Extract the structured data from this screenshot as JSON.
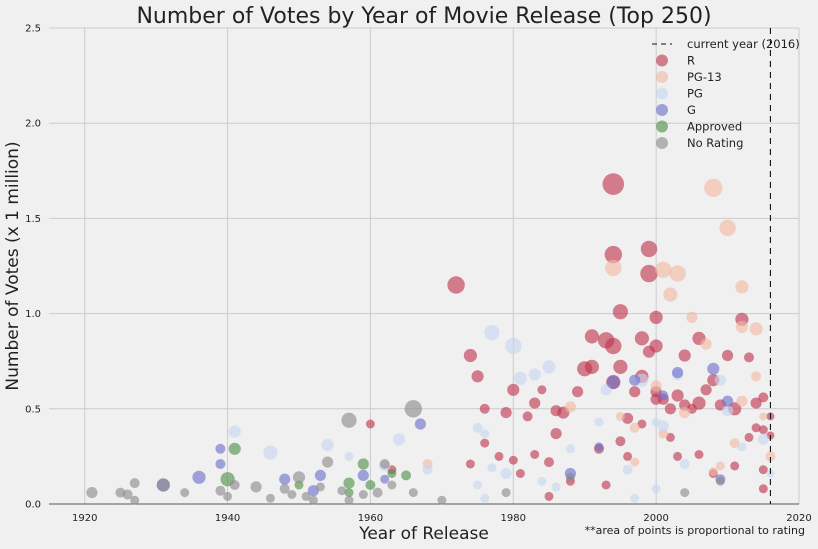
{
  "chart_data": {
    "type": "scatter",
    "title": "Number of Votes by Year of Movie Release (Top 250)",
    "xlabel": "Year of Release",
    "ylabel": "Number of Votes (x 1 million)",
    "note": "**area of points is proportional to rating",
    "xlim": [
      1915,
      2020
    ],
    "ylim": [
      0,
      2.5
    ],
    "xticks": [
      1920,
      1940,
      1960,
      1980,
      2000,
      2020
    ],
    "yticks": [
      0.0,
      0.5,
      1.0,
      1.5,
      2.0,
      2.5
    ],
    "ytick_labels": [
      "0.0",
      "0.5",
      "1.0",
      "1.5",
      "2.0",
      "2.5"
    ],
    "grid": true,
    "legend_placement": "top-right",
    "reference_line": {
      "x": 2016,
      "label": "current year (2016)"
    },
    "series": [
      {
        "name": "R",
        "color": "#c0334d",
        "points": [
          [
            1972,
            1.15,
            8.9
          ],
          [
            1974,
            0.78,
            8.5
          ],
          [
            1975,
            0.67,
            8.4
          ],
          [
            1976,
            0.5,
            8.2
          ],
          [
            1976,
            0.32,
            8.1
          ],
          [
            1974,
            0.21,
            8.1
          ],
          [
            1978,
            0.25,
            8.1
          ],
          [
            1979,
            0.48,
            8.3
          ],
          [
            1980,
            0.23,
            8.1
          ],
          [
            1980,
            0.6,
            8.4
          ],
          [
            1981,
            0.16,
            8.1
          ],
          [
            1982,
            0.46,
            8.2
          ],
          [
            1983,
            0.26,
            8.1
          ],
          [
            1983,
            0.53,
            8.3
          ],
          [
            1984,
            0.6,
            8.1
          ],
          [
            1985,
            0.22,
            8.2
          ],
          [
            1986,
            0.37,
            8.3
          ],
          [
            1986,
            0.49,
            8.3
          ],
          [
            1987,
            0.48,
            8.4
          ],
          [
            1988,
            0.12,
            8.1
          ],
          [
            1989,
            0.59,
            8.3
          ],
          [
            1990,
            0.71,
            8.7
          ],
          [
            1991,
            0.88,
            8.6
          ],
          [
            1991,
            0.72,
            8.6
          ],
          [
            1992,
            0.29,
            8.2
          ],
          [
            1993,
            0.86,
            8.8
          ],
          [
            1993,
            0.1,
            8.1
          ],
          [
            1994,
            1.68,
            9.3
          ],
          [
            1994,
            1.31,
            8.9
          ],
          [
            1994,
            0.83,
            8.8
          ],
          [
            1994,
            0.64,
            8.6
          ],
          [
            1995,
            1.01,
            8.7
          ],
          [
            1995,
            0.72,
            8.6
          ],
          [
            1995,
            0.33,
            8.2
          ],
          [
            1996,
            0.45,
            8.3
          ],
          [
            1996,
            0.25,
            8.1
          ],
          [
            1997,
            0.59,
            8.3
          ],
          [
            1998,
            0.87,
            8.6
          ],
          [
            1998,
            0.67,
            8.5
          ],
          [
            1998,
            0.42,
            8.1
          ],
          [
            1999,
            1.34,
            8.8
          ],
          [
            1999,
            1.21,
            8.9
          ],
          [
            1999,
            0.8,
            8.4
          ],
          [
            2000,
            0.98,
            8.5
          ],
          [
            2000,
            0.83,
            8.5
          ],
          [
            2000,
            0.59,
            8.3
          ],
          [
            2000,
            0.55,
            8.3
          ],
          [
            2001,
            0.55,
            8.3
          ],
          [
            2002,
            0.5,
            8.3
          ],
          [
            2002,
            0.35,
            8.1
          ],
          [
            2003,
            0.57,
            8.4
          ],
          [
            2003,
            0.25,
            8.1
          ],
          [
            2004,
            0.78,
            8.4
          ],
          [
            2004,
            0.52,
            8.3
          ],
          [
            2005,
            0.5,
            8.2
          ],
          [
            2006,
            0.87,
            8.5
          ],
          [
            2006,
            0.53,
            8.5
          ],
          [
            2006,
            0.26,
            8.1
          ],
          [
            2007,
            0.6,
            8.3
          ],
          [
            2008,
            0.16,
            8.1
          ],
          [
            2008,
            0.65,
            8.4
          ],
          [
            2009,
            0.52,
            8.3
          ],
          [
            2010,
            0.78,
            8.3
          ],
          [
            2011,
            0.5,
            8.5
          ],
          [
            2011,
            0.2,
            8.1
          ],
          [
            2012,
            0.97,
            8.5
          ],
          [
            2013,
            0.77,
            8.2
          ],
          [
            2013,
            0.35,
            8.1
          ],
          [
            2014,
            0.53,
            8.3
          ],
          [
            2014,
            0.4,
            8.1
          ],
          [
            2015,
            0.56,
            8.2
          ],
          [
            2015,
            0.39,
            8.1
          ],
          [
            2015,
            0.18,
            8.1
          ],
          [
            2016,
            0.36,
            8.0
          ],
          [
            2016,
            0.46,
            8.0
          ],
          [
            2015,
            0.08,
            8.1
          ],
          [
            1960,
            0.42,
            8.1
          ],
          [
            1963,
            0.18,
            8.1
          ],
          [
            1985,
            0.04,
            8.1
          ]
        ]
      },
      {
        "name": "PG-13",
        "color": "#f2b9a2",
        "points": [
          [
            1968,
            0.21,
            8.2
          ],
          [
            1988,
            0.51,
            8.3
          ],
          [
            1994,
            1.24,
            8.8
          ],
          [
            1997,
            0.22,
            8.1
          ],
          [
            2001,
            1.23,
            8.8
          ],
          [
            2002,
            1.1,
            8.6
          ],
          [
            2003,
            1.21,
            8.8
          ],
          [
            2004,
            0.48,
            8.3
          ],
          [
            2005,
            0.98,
            8.3
          ],
          [
            2007,
            0.84,
            8.3
          ],
          [
            2008,
            1.66,
            9.0
          ],
          [
            2008,
            0.17,
            8.1
          ],
          [
            2009,
            0.2,
            8.1
          ],
          [
            2010,
            1.45,
            8.8
          ],
          [
            2011,
            0.32,
            8.2
          ],
          [
            2012,
            1.14,
            8.5
          ],
          [
            2012,
            0.93,
            8.4
          ],
          [
            2012,
            0.54,
            8.3
          ],
          [
            2014,
            0.92,
            8.5
          ],
          [
            2014,
            0.67,
            8.2
          ],
          [
            2015,
            0.46,
            8.0
          ],
          [
            2016,
            0.25,
            8.2
          ],
          [
            2000,
            0.62,
            8.3
          ],
          [
            1995,
            0.46,
            8.1
          ],
          [
            1997,
            0.4,
            8.2
          ],
          [
            2001,
            0.37,
            8.2
          ]
        ]
      },
      {
        "name": "PG",
        "color": "#c6d7f0",
        "points": [
          [
            1941,
            0.38,
            8.4
          ],
          [
            1946,
            0.27,
            8.6
          ],
          [
            1954,
            0.31,
            8.4
          ],
          [
            1957,
            0.25,
            8.1
          ],
          [
            1962,
            0.2,
            8.3
          ],
          [
            1964,
            0.34,
            8.4
          ],
          [
            1968,
            0.18,
            8.2
          ],
          [
            1975,
            0.4,
            8.2
          ],
          [
            1976,
            0.37,
            8.1
          ],
          [
            1977,
            0.9,
            8.7
          ],
          [
            1980,
            0.83,
            8.8
          ],
          [
            1981,
            0.66,
            8.5
          ],
          [
            1983,
            0.68,
            8.4
          ],
          [
            1985,
            0.72,
            8.5
          ],
          [
            1975,
            0.1,
            8.1
          ],
          [
            1976,
            0.03,
            8.1
          ],
          [
            1977,
            0.19,
            8.1
          ],
          [
            1979,
            0.16,
            8.3
          ],
          [
            1984,
            0.12,
            8.1
          ],
          [
            1986,
            0.09,
            8.1
          ],
          [
            1988,
            0.29,
            8.1
          ],
          [
            1992,
            0.43,
            8.1
          ],
          [
            1993,
            0.6,
            8.3
          ],
          [
            1996,
            0.18,
            8.2
          ],
          [
            1997,
            0.03,
            8.1
          ],
          [
            1998,
            0.65,
            8.5
          ],
          [
            2000,
            0.43,
            8.1
          ],
          [
            2001,
            0.41,
            8.3
          ],
          [
            2003,
            0.68,
            8.3
          ],
          [
            2004,
            0.21,
            8.2
          ],
          [
            2009,
            0.65,
            8.3
          ],
          [
            2010,
            0.49,
            8.3
          ],
          [
            2012,
            0.3,
            8.1
          ],
          [
            2015,
            0.34,
            8.3
          ],
          [
            2016,
            0.16,
            8.0
          ],
          [
            2000,
            0.08,
            8.1
          ]
        ]
      },
      {
        "name": "G",
        "color": "#6c6fcb",
        "points": [
          [
            1931,
            0.1,
            8.5
          ],
          [
            1936,
            0.14,
            8.5
          ],
          [
            1939,
            0.29,
            8.2
          ],
          [
            1939,
            0.21,
            8.2
          ],
          [
            1948,
            0.13,
            8.3
          ],
          [
            1952,
            0.07,
            8.3
          ],
          [
            1953,
            0.15,
            8.3
          ],
          [
            1959,
            0.15,
            8.3
          ],
          [
            1962,
            0.13,
            8.1
          ],
          [
            1967,
            0.42,
            8.3
          ],
          [
            1988,
            0.16,
            8.3
          ],
          [
            1992,
            0.3,
            8.1
          ],
          [
            1994,
            0.64,
            8.5
          ],
          [
            1997,
            0.65,
            8.3
          ],
          [
            2001,
            0.57,
            8.2
          ],
          [
            2003,
            0.69,
            8.3
          ],
          [
            2008,
            0.71,
            8.4
          ],
          [
            2009,
            0.13,
            8.2
          ],
          [
            2010,
            0.54,
            8.3
          ]
        ]
      },
      {
        "name": "Approved",
        "color": "#4e9147",
        "points": [
          [
            1940,
            0.13,
            8.6
          ],
          [
            1941,
            0.29,
            8.4
          ],
          [
            1950,
            0.1,
            8.1
          ],
          [
            1957,
            0.11,
            8.3
          ],
          [
            1959,
            0.21,
            8.3
          ],
          [
            1960,
            0.1,
            8.2
          ],
          [
            1963,
            0.16,
            8.1
          ],
          [
            1965,
            0.15,
            8.2
          ],
          [
            1957,
            0.06,
            8.1
          ]
        ]
      },
      {
        "name": "No Rating",
        "color": "#8a8a8a",
        "points": [
          [
            1921,
            0.06,
            8.3
          ],
          [
            1925,
            0.06,
            8.2
          ],
          [
            1926,
            0.05,
            8.2
          ],
          [
            1927,
            0.11,
            8.2
          ],
          [
            1927,
            0.02,
            8.1
          ],
          [
            1931,
            0.1,
            8.5
          ],
          [
            1934,
            0.06,
            8.1
          ],
          [
            1939,
            0.07,
            8.2
          ],
          [
            1940,
            0.04,
            8.1
          ],
          [
            1941,
            0.1,
            8.2
          ],
          [
            1944,
            0.09,
            8.3
          ],
          [
            1946,
            0.03,
            8.1
          ],
          [
            1948,
            0.08,
            8.2
          ],
          [
            1949,
            0.05,
            8.1
          ],
          [
            1950,
            0.14,
            8.4
          ],
          [
            1951,
            0.04,
            8.1
          ],
          [
            1953,
            0.09,
            8.1
          ],
          [
            1954,
            0.22,
            8.3
          ],
          [
            1956,
            0.07,
            8.1
          ],
          [
            1957,
            0.44,
            8.7
          ],
          [
            1957,
            0.02,
            8.1
          ],
          [
            1959,
            0.05,
            8.1
          ],
          [
            1961,
            0.06,
            8.2
          ],
          [
            1962,
            0.21,
            8.2
          ],
          [
            1963,
            0.1,
            8.1
          ],
          [
            1966,
            0.5,
            8.9
          ],
          [
            1966,
            0.06,
            8.1
          ],
          [
            1970,
            0.02,
            8.1
          ],
          [
            1979,
            0.06,
            8.1
          ],
          [
            1988,
            0.14,
            8.1
          ],
          [
            2004,
            0.06,
            8.1
          ],
          [
            2009,
            0.12,
            8.1
          ],
          [
            1952,
            0.02,
            8.1
          ]
        ]
      }
    ]
  }
}
